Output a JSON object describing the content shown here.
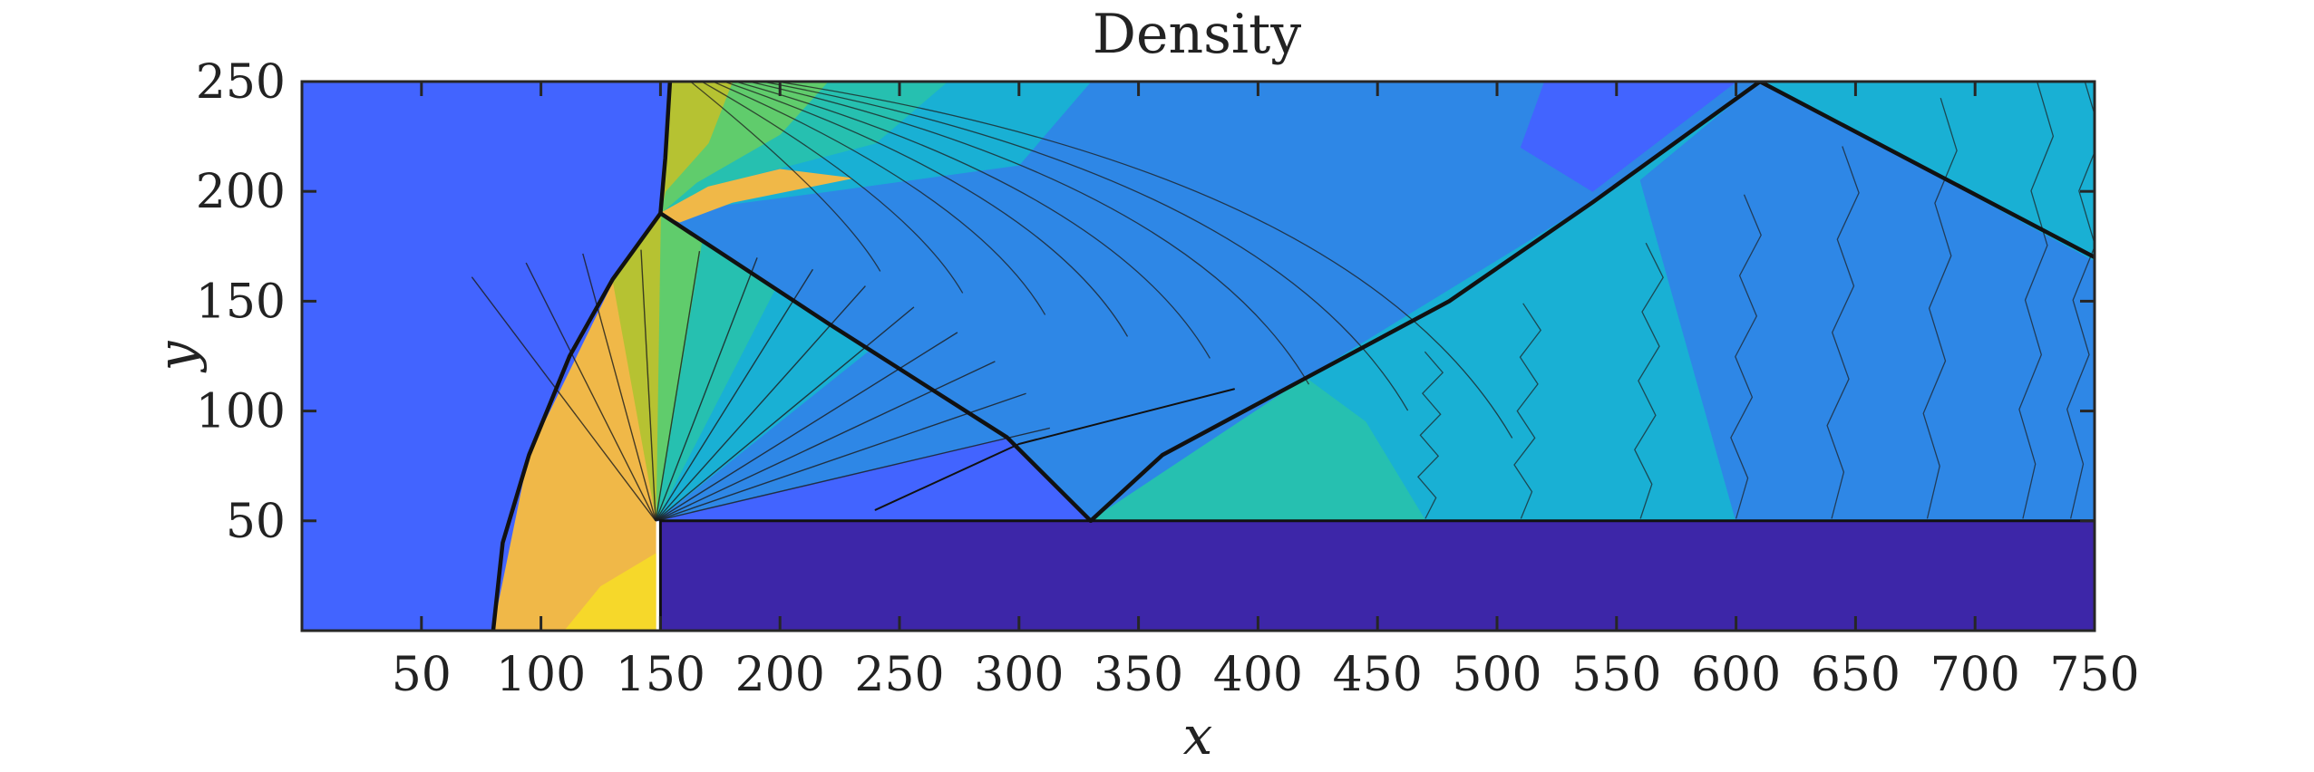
{
  "chart_data": {
    "type": "heatmap",
    "title": "Density",
    "xlabel": "x",
    "ylabel": "y",
    "xlim": [
      0,
      750
    ],
    "ylim": [
      0,
      250
    ],
    "xticks": [
      50,
      100,
      150,
      200,
      250,
      300,
      350,
      400,
      450,
      500,
      550,
      600,
      650,
      700,
      750
    ],
    "yticks": [
      50,
      100,
      150,
      200,
      250
    ],
    "grid": false,
    "legend": "none",
    "obstacle": {
      "x0": 150,
      "x1": 750,
      "y0": 0,
      "y1": 50
    },
    "colors": {
      "low": "#4264ff",
      "obstacle": "#3d26a8",
      "blue": "#2e87e6",
      "cyan": "#19b0d4",
      "teal": "#26c0b0",
      "green": "#60cc6c",
      "yellowgreen": "#b6c232",
      "orange": "#f0b848",
      "yellow": "#f6d82a",
      "contour": "#1c1c1c"
    },
    "regions": [
      {
        "name": "undisturbed",
        "color": "low",
        "points": [
          [
            0,
            0
          ],
          [
            80,
            0
          ],
          [
            150,
            190
          ],
          [
            154,
            250
          ],
          [
            0,
            250
          ]
        ]
      },
      {
        "name": "fan-low",
        "color": "low",
        "points": [
          [
            148,
            50
          ],
          [
            330,
            50
          ],
          [
            295,
            88
          ]
        ]
      },
      {
        "name": "fan-mid",
        "color": "blue",
        "points": [
          [
            148,
            50
          ],
          [
            295,
            88
          ],
          [
            240,
            130
          ]
        ]
      },
      {
        "name": "fan-cyan",
        "color": "cyan",
        "points": [
          [
            148,
            50
          ],
          [
            240,
            130
          ],
          [
            200,
            160
          ]
        ]
      },
      {
        "name": "fan-teal",
        "color": "teal",
        "points": [
          [
            148,
            50
          ],
          [
            200,
            160
          ],
          [
            168,
            182
          ]
        ]
      },
      {
        "name": "fan-green",
        "color": "green",
        "points": [
          [
            148,
            50
          ],
          [
            168,
            182
          ],
          [
            150,
            190
          ]
        ]
      },
      {
        "name": "fan-yellowgreen",
        "color": "yellowgreen",
        "points": [
          [
            148,
            50
          ],
          [
            150,
            190
          ],
          [
            130,
            158
          ]
        ]
      },
      {
        "name": "post-shock-lower",
        "color": "orange",
        "points": [
          [
            80,
            0
          ],
          [
            148,
            0
          ],
          [
            148,
            50
          ],
          [
            130,
            158
          ],
          [
            95,
            80
          ]
        ]
      },
      {
        "name": "post-shock-hot",
        "color": "yellow",
        "points": [
          [
            110,
            0
          ],
          [
            148,
            0
          ],
          [
            148,
            35
          ],
          [
            125,
            20
          ]
        ]
      },
      {
        "name": "upper-blue",
        "color": "blue",
        "points": [
          [
            150,
            190
          ],
          [
            295,
            88
          ],
          [
            330,
            50
          ],
          [
            420,
            115
          ],
          [
            540,
            195
          ],
          [
            610,
            250
          ],
          [
            154,
            250
          ]
        ]
      },
      {
        "name": "upper-cyan-band",
        "color": "cyan",
        "points": [
          [
            154,
            250
          ],
          [
            330,
            250
          ],
          [
            300,
            212
          ],
          [
            220,
            200
          ],
          [
            150,
            190
          ]
        ]
      },
      {
        "name": "upper-teal-band",
        "color": "teal",
        "points": [
          [
            154,
            250
          ],
          [
            270,
            250
          ],
          [
            240,
            222
          ],
          [
            180,
            205
          ],
          [
            150,
            190
          ]
        ]
      },
      {
        "name": "upper-green-band",
        "color": "green",
        "points": [
          [
            154,
            250
          ],
          [
            220,
            250
          ],
          [
            200,
            226
          ],
          [
            165,
            204
          ],
          [
            150,
            190
          ]
        ]
      },
      {
        "name": "upper-yellowgreen-band",
        "color": "yellowgreen",
        "points": [
          [
            154,
            250
          ],
          [
            180,
            250
          ],
          [
            170,
            222
          ],
          [
            152,
            200
          ],
          [
            150,
            190
          ]
        ]
      },
      {
        "name": "upper-orange-band",
        "color": "orange",
        "points": [
          [
            150,
            190
          ],
          [
            170,
            202
          ],
          [
            200,
            210
          ],
          [
            230,
            206
          ],
          [
            180,
            195
          ],
          [
            158,
            186
          ]
        ]
      },
      {
        "name": "top-dark",
        "color": "low",
        "points": [
          [
            520,
            250
          ],
          [
            600,
            250
          ],
          [
            540,
            200
          ],
          [
            510,
            220
          ]
        ]
      },
      {
        "name": "reflected-cyan",
        "color": "cyan",
        "points": [
          [
            330,
            50
          ],
          [
            750,
            50
          ],
          [
            750,
            250
          ],
          [
            610,
            250
          ],
          [
            540,
            195
          ],
          [
            420,
            115
          ]
        ]
      },
      {
        "name": "reflected-teal",
        "color": "teal",
        "points": [
          [
            330,
            50
          ],
          [
            470,
            50
          ],
          [
            445,
            95
          ],
          [
            420,
            115
          ]
        ]
      },
      {
        "name": "reflected-blue-right",
        "color": "blue",
        "points": [
          [
            600,
            50
          ],
          [
            750,
            50
          ],
          [
            750,
            168
          ],
          [
            610,
            250
          ],
          [
            560,
            205
          ]
        ]
      },
      {
        "name": "top-right-cyan",
        "color": "cyan",
        "points": [
          [
            610,
            250
          ],
          [
            750,
            250
          ],
          [
            750,
            170
          ]
        ]
      },
      {
        "name": "obstacle",
        "color": "obstacle",
        "points": [
          [
            150,
            0
          ],
          [
            750,
            0
          ],
          [
            750,
            50
          ],
          [
            150,
            50
          ]
        ]
      }
    ],
    "shock_lines": [
      {
        "name": "incident-shock",
        "points": [
          [
            80,
            0
          ],
          [
            84,
            40
          ],
          [
            95,
            80
          ],
          [
            112,
            125
          ],
          [
            130,
            160
          ],
          [
            150,
            190
          ],
          [
            152,
            215
          ],
          [
            154,
            250
          ]
        ]
      },
      {
        "name": "diffracted-shock",
        "points": [
          [
            150,
            190
          ],
          [
            220,
            140
          ],
          [
            295,
            88
          ],
          [
            330,
            50
          ]
        ]
      },
      {
        "name": "reflected-shock",
        "points": [
          [
            330,
            50
          ],
          [
            360,
            80
          ],
          [
            420,
            115
          ],
          [
            480,
            150
          ],
          [
            540,
            195
          ],
          [
            610,
            250
          ]
        ]
      },
      {
        "name": "slipstream",
        "points": [
          [
            240,
            55
          ],
          [
            300,
            85
          ],
          [
            390,
            110
          ]
        ]
      },
      {
        "name": "top-right-shock",
        "points": [
          [
            610,
            250
          ],
          [
            680,
            210
          ],
          [
            750,
            170
          ]
        ]
      }
    ],
    "fan_center": [
      148,
      50
    ],
    "fan_angles": [
      20,
      28,
      36,
      44,
      52,
      60,
      68,
      76,
      84,
      92,
      100,
      108,
      116
    ],
    "fan_radius": 130,
    "upper_arcs": [
      0.4,
      0.55,
      0.7,
      0.85,
      1.0,
      1.18,
      1.36,
      1.55
    ],
    "contour_x": [
      470,
      510,
      560,
      600,
      640,
      680,
      720,
      740
    ]
  }
}
